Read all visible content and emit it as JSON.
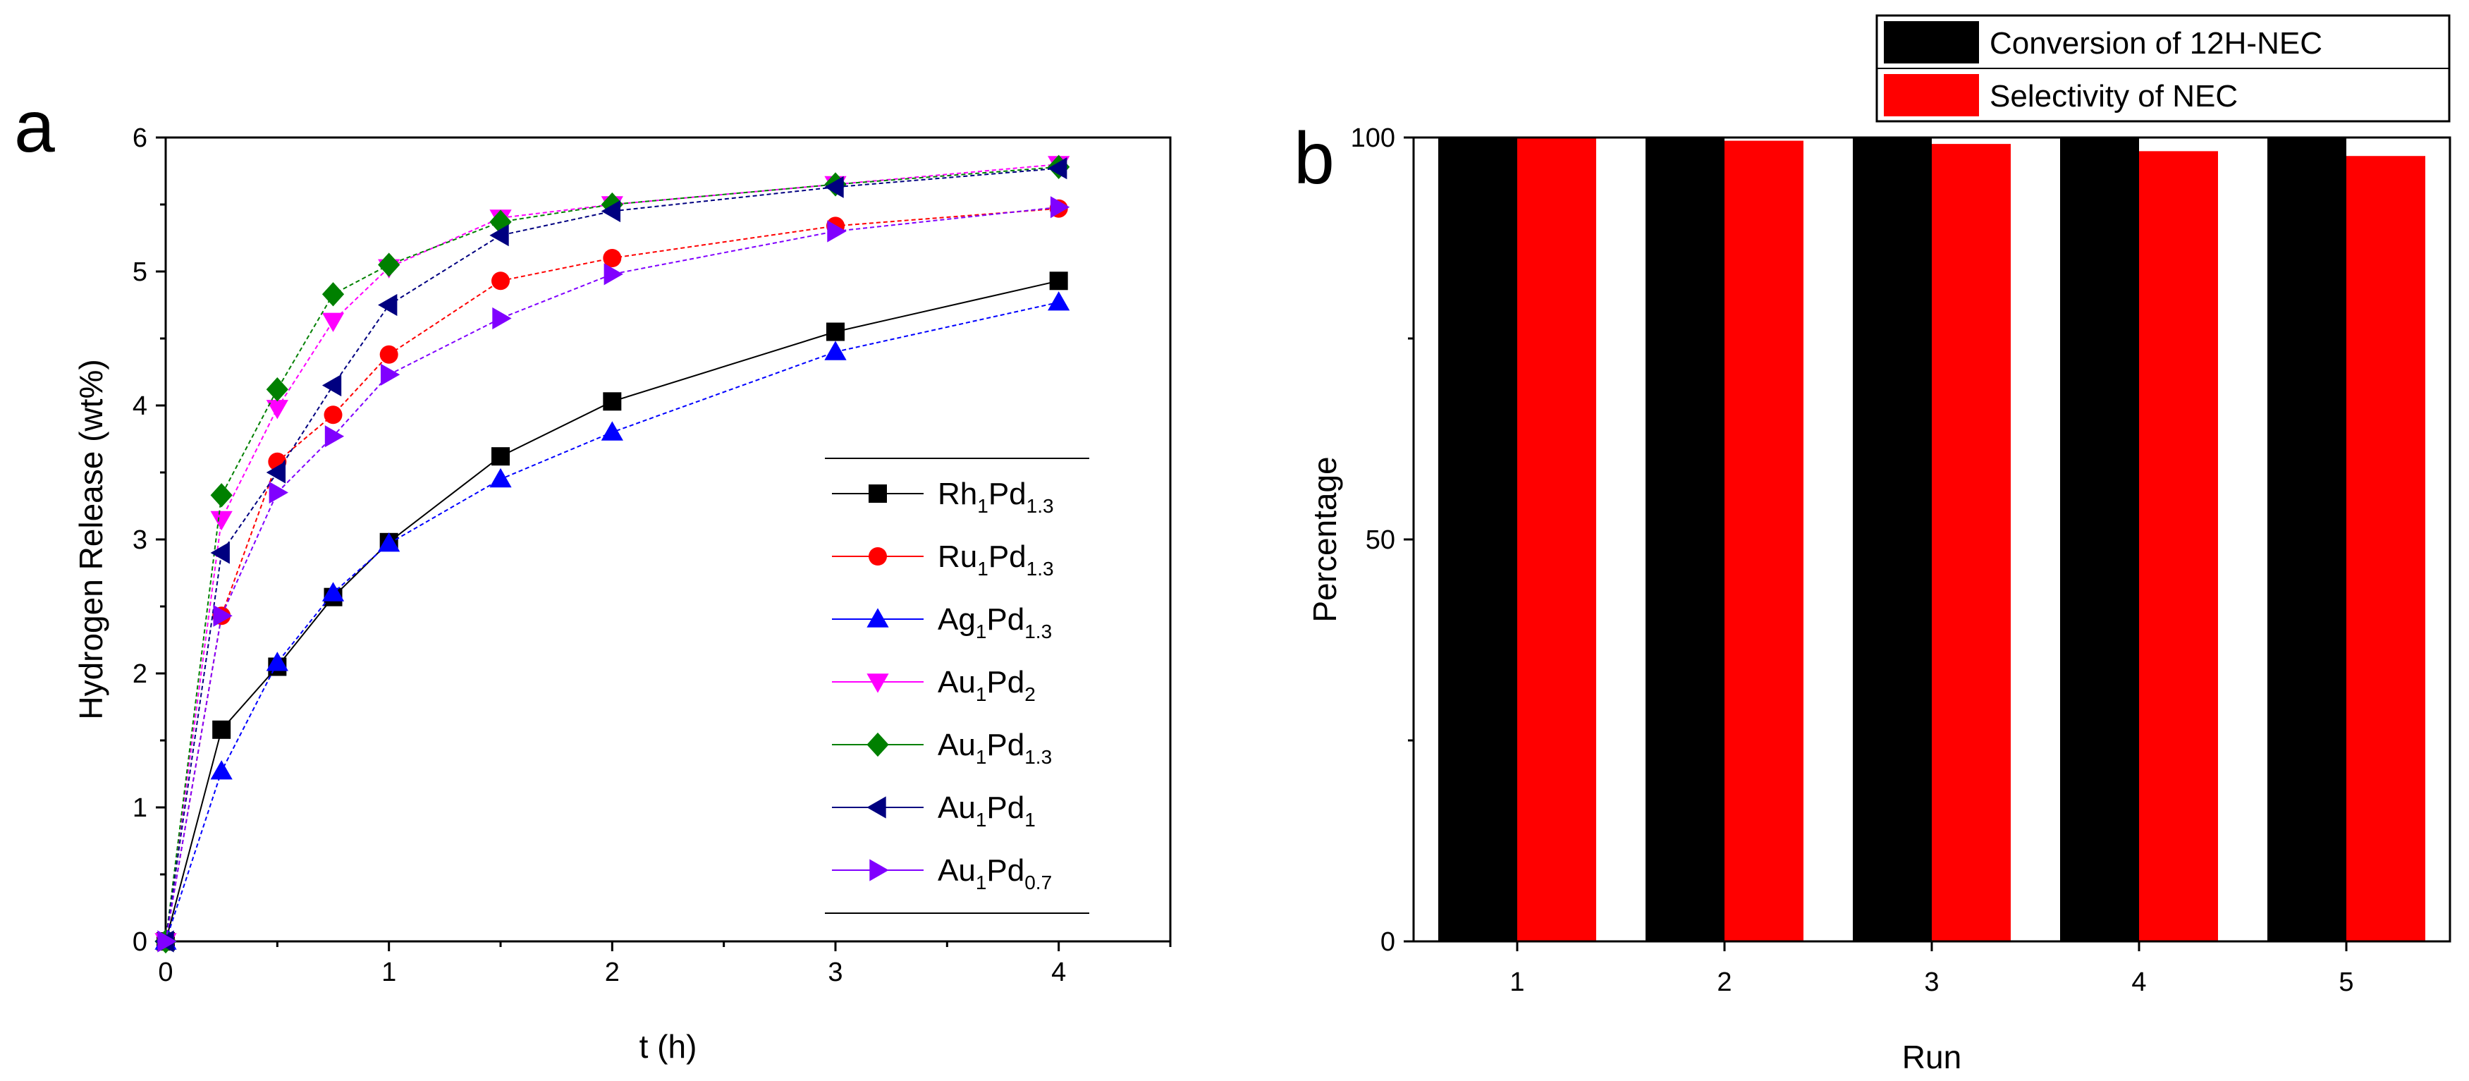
{
  "figure": {
    "panel_a_letter": "a",
    "panel_b_letter": "b"
  },
  "chart_data": [
    {
      "type": "line",
      "panel": "a",
      "title": "",
      "xlabel": "t (h)",
      "ylabel": "Hydrogen Release (wt%)",
      "xlim": [
        0,
        4.5
      ],
      "ylim": [
        0,
        6
      ],
      "x_ticks": [
        "0",
        "1",
        "2",
        "3",
        "4"
      ],
      "y_ticks": [
        "0",
        "1",
        "2",
        "3",
        "4",
        "5",
        "6"
      ],
      "legend_position": "bottom-right",
      "series": [
        {
          "name": "Rh1Pd1.3",
          "base": "Rh",
          "sub1": "1",
          "base2": "Pd",
          "sub2": "1.3",
          "color": "#000000",
          "marker": "square",
          "x": [
            0,
            0.25,
            0.5,
            0.75,
            1,
            1.5,
            2,
            3,
            4
          ],
          "y": [
            0,
            1.58,
            2.05,
            2.57,
            2.98,
            3.62,
            4.03,
            4.55,
            4.93
          ]
        },
        {
          "name": "Ru1Pd1.3",
          "base": "Ru",
          "sub1": "1",
          "base2": "Pd",
          "sub2": "1.3",
          "color": "#ff0000",
          "marker": "circle",
          "x": [
            0,
            0.25,
            0.5,
            0.75,
            1,
            1.5,
            2,
            3,
            4
          ],
          "y": [
            0,
            2.43,
            3.58,
            3.93,
            4.38,
            4.93,
            5.1,
            5.34,
            5.47
          ]
        },
        {
          "name": "Ag1Pd1.3",
          "base": "Ag",
          "sub1": "1",
          "base2": "Pd",
          "sub2": "1.3",
          "color": "#0000ff",
          "marker": "triangle-up",
          "x": [
            0,
            0.25,
            0.5,
            0.75,
            1,
            1.5,
            2,
            3,
            4
          ],
          "y": [
            0,
            1.27,
            2.08,
            2.6,
            2.97,
            3.45,
            3.8,
            4.4,
            4.77
          ]
        },
        {
          "name": "Au1Pd2",
          "base": "Au",
          "sub1": "1",
          "base2": "Pd",
          "sub2": "2",
          "color": "#ff00ff",
          "marker": "triangle-down",
          "x": [
            0,
            0.25,
            0.5,
            0.75,
            1,
            1.5,
            2,
            3,
            4
          ],
          "y": [
            0,
            3.15,
            3.98,
            4.63,
            5.03,
            5.4,
            5.5,
            5.65,
            5.8
          ]
        },
        {
          "name": "Au1Pd1.3",
          "base": "Au",
          "sub1": "1",
          "base2": "Pd",
          "sub2": "1.3",
          "color": "#008000",
          "marker": "diamond",
          "x": [
            0,
            0.25,
            0.5,
            0.75,
            1,
            1.5,
            2,
            3,
            4
          ],
          "y": [
            0,
            3.33,
            4.12,
            4.83,
            5.05,
            5.37,
            5.5,
            5.65,
            5.78
          ]
        },
        {
          "name": "Au1Pd1",
          "base": "Au",
          "sub1": "1",
          "base2": "Pd",
          "sub2": "1",
          "color": "#000080",
          "marker": "triangle-left",
          "x": [
            0,
            0.25,
            0.5,
            0.75,
            1,
            1.5,
            2,
            3,
            4
          ],
          "y": [
            0,
            2.9,
            3.5,
            4.15,
            4.75,
            5.27,
            5.45,
            5.63,
            5.77
          ]
        },
        {
          "name": "Au1Pd0.7",
          "base": "Au",
          "sub1": "1",
          "base2": "Pd",
          "sub2": "0.7",
          "color": "#8000ff",
          "marker": "triangle-right",
          "x": [
            0,
            0.25,
            0.5,
            0.75,
            1,
            1.5,
            2,
            3,
            4
          ],
          "y": [
            0,
            2.43,
            3.35,
            3.77,
            4.23,
            4.65,
            4.98,
            5.3,
            5.48
          ]
        }
      ]
    },
    {
      "type": "bar",
      "panel": "b",
      "title": "",
      "xlabel": "Run",
      "ylabel": "Percentage",
      "ylim": [
        0,
        100
      ],
      "y_ticks": [
        "0",
        "50",
        "100"
      ],
      "categories": [
        "1",
        "2",
        "3",
        "4",
        "5"
      ],
      "legend_position": "top-right",
      "series": [
        {
          "name": "Conversion of 12H-NEC",
          "color": "#000000",
          "values": [
            100,
            100,
            100,
            100,
            100
          ]
        },
        {
          "name": "Selectivity of NEC",
          "color": "#ff0000",
          "values": [
            100,
            99.6,
            99.2,
            98.3,
            97.7
          ]
        }
      ]
    }
  ]
}
